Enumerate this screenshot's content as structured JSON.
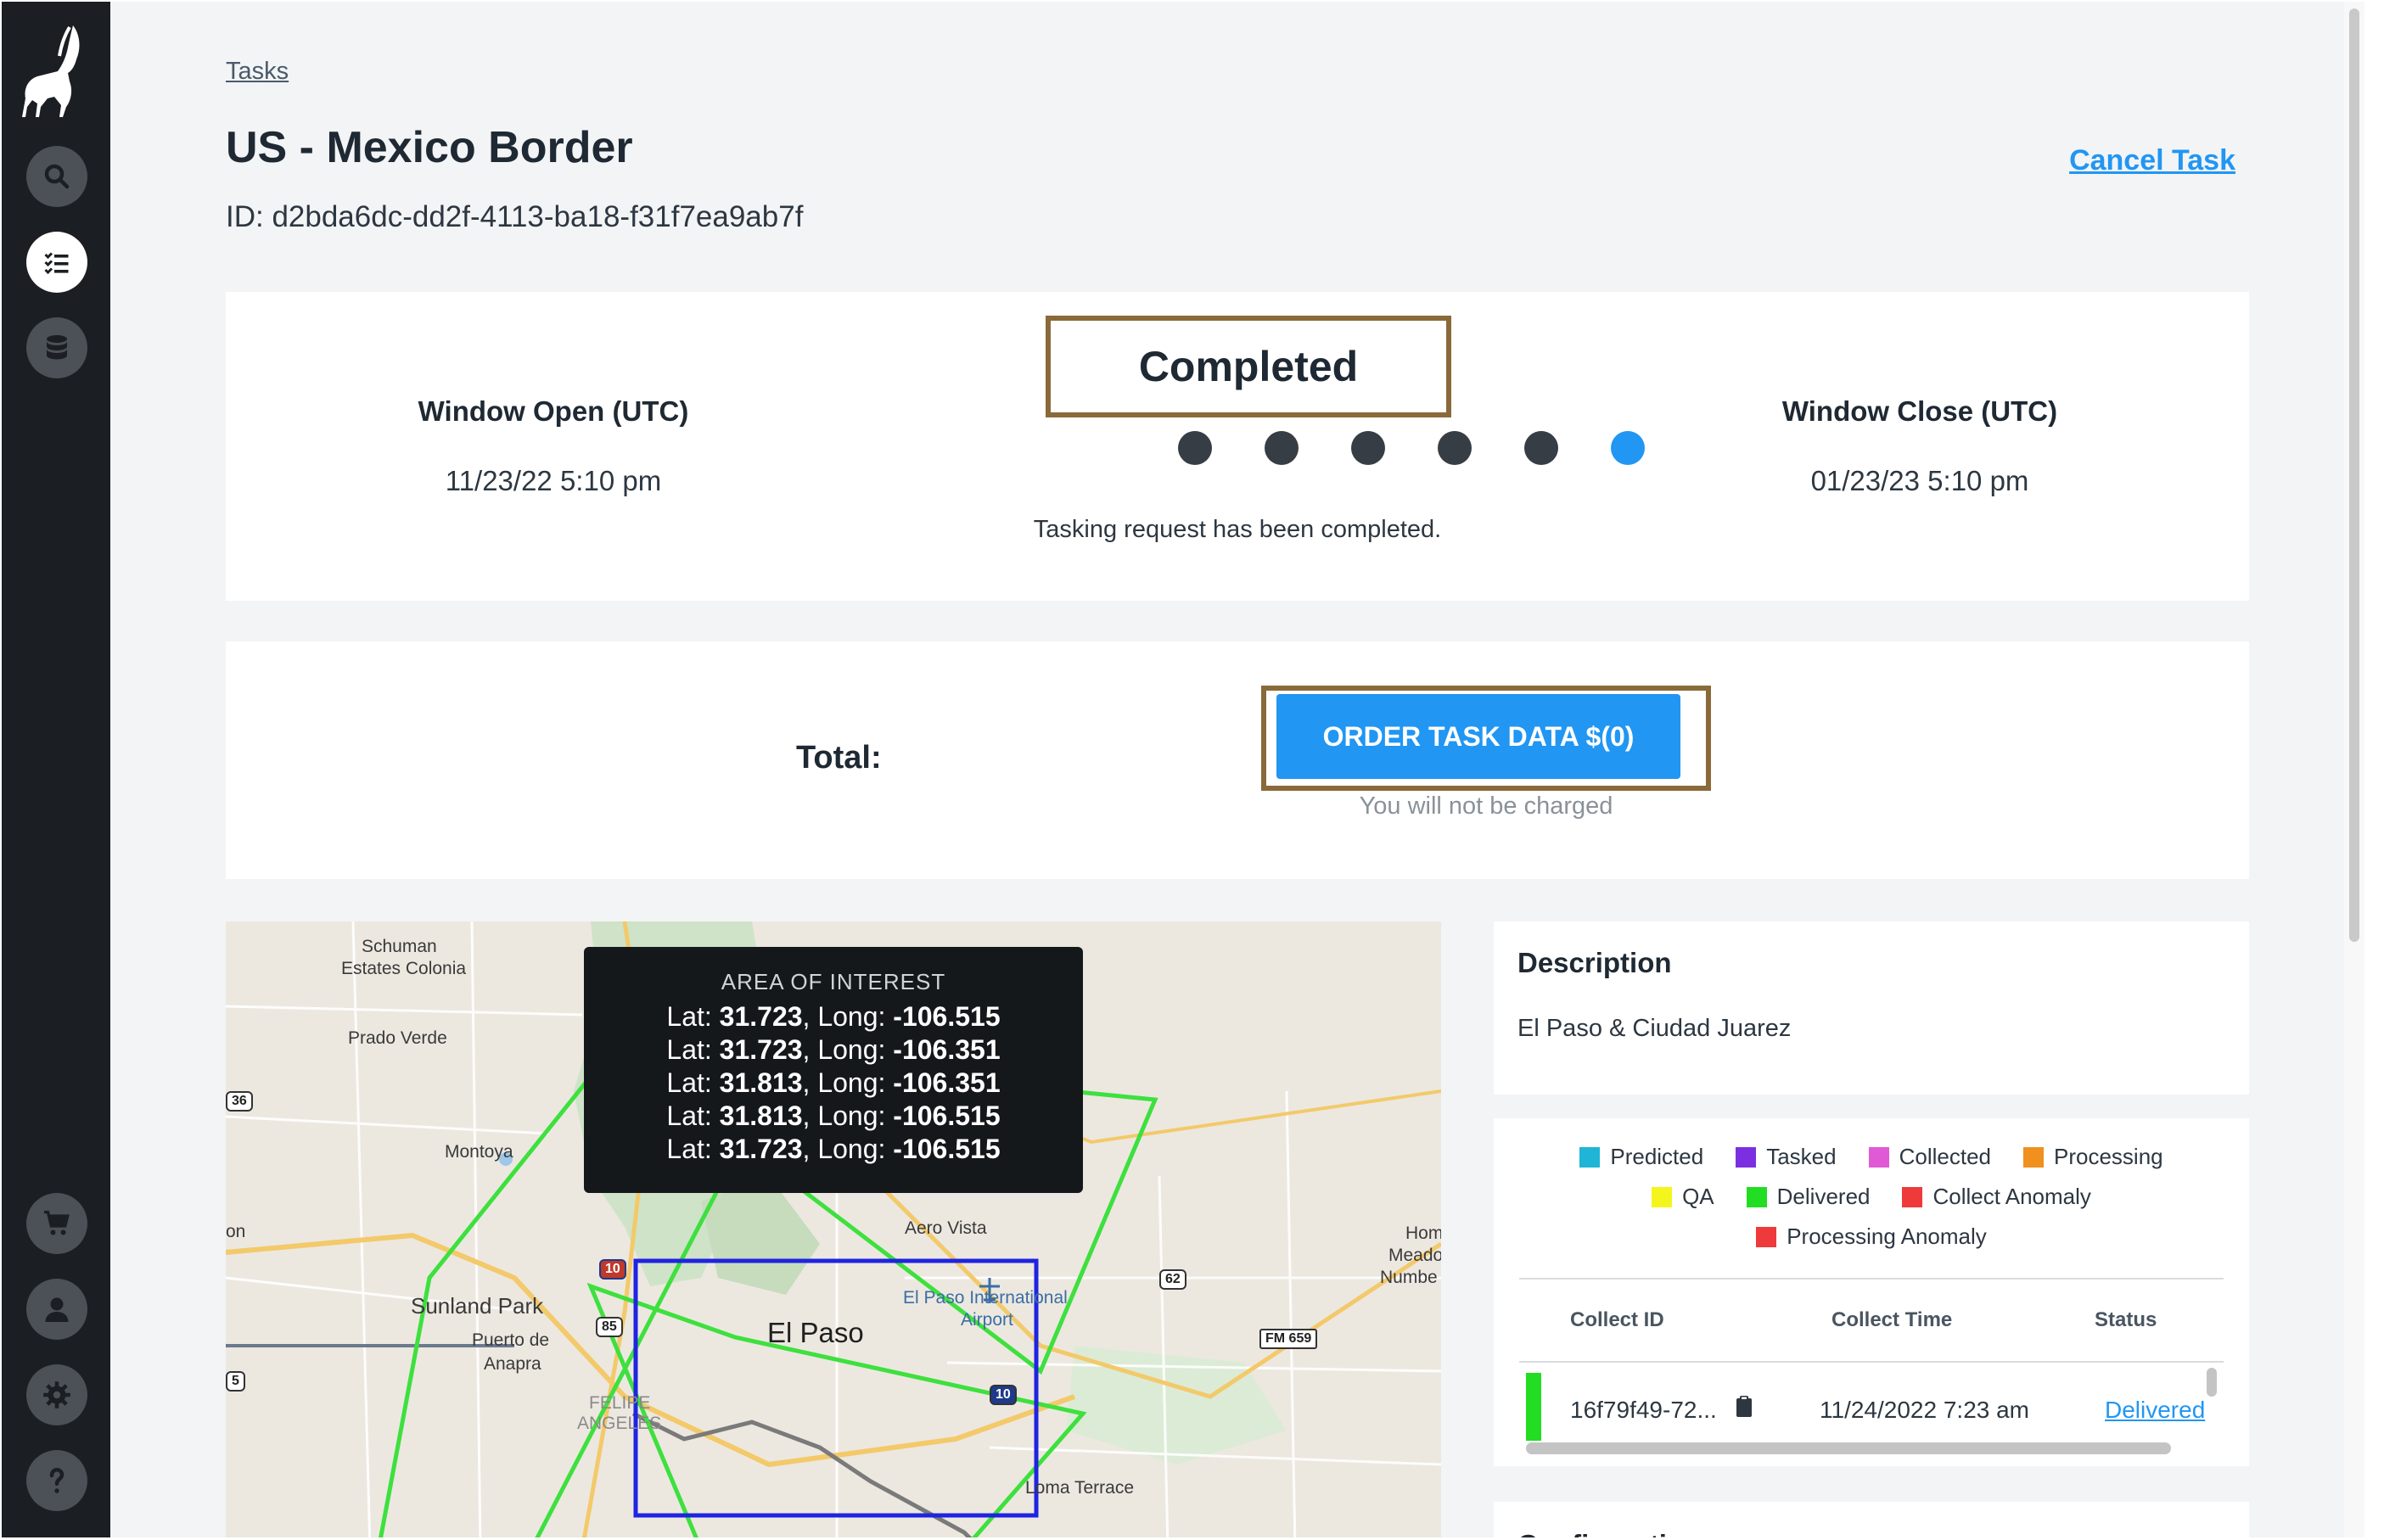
{
  "breadcrumb": "Tasks",
  "task": {
    "title": "US - Mexico Border",
    "id_text": "ID: d2bda6dc-dd2f-4113-ba18-f31f7ea9ab7f",
    "cancel_label": "Cancel Task"
  },
  "status": {
    "label": "Completed",
    "message": "Tasking request has been completed.",
    "step_count": 6,
    "current_step": 6,
    "window_open_label": "Window Open (UTC)",
    "window_open_value": "11/23/22 5:10 pm",
    "window_close_label": "Window Close (UTC)",
    "window_close_value": "01/23/23 5:10 pm"
  },
  "order": {
    "total_label": "Total:",
    "button_label": "ORDER TASK DATA $(0)",
    "note": "You will not be charged"
  },
  "map": {
    "tooltip_title": "AREA OF INTEREST",
    "coords": [
      {
        "lat_label": "Lat: ",
        "lat": "31.723",
        "long_label": ", Long: ",
        "long": "-106.515"
      },
      {
        "lat_label": "Lat: ",
        "lat": "31.723",
        "long_label": ", Long: ",
        "long": "-106.351"
      },
      {
        "lat_label": "Lat: ",
        "lat": "31.813",
        "long_label": ", Long: ",
        "long": "-106.351"
      },
      {
        "lat_label": "Lat: ",
        "lat": "31.813",
        "long_label": ", Long: ",
        "long": "-106.515"
      },
      {
        "lat_label": "Lat: ",
        "lat": "31.723",
        "long_label": ", Long: ",
        "long": "-106.515"
      }
    ],
    "labels": {
      "schuman": "Schuman",
      "estates": "Estates Colonia",
      "prado_verde": "Prado Verde",
      "montoya": "Montoya",
      "sunland_park": "Sunland Park",
      "puerto_de": "Puerto de",
      "anapra": "Anapra",
      "el_paso": "El Paso",
      "aero_vista": "Aero Vista",
      "airport_1": "El Paso International",
      "airport_2": "Airport",
      "felipe": "FELIPE",
      "angeles": "ANGELES",
      "loma_terrace": "Loma Terrace",
      "hom": "Hom",
      "meado": "Meado",
      "numbe": "Numbe",
      "on": "on",
      "fm659": "FM 659",
      "r36": "36",
      "r10": "10",
      "r85": "85",
      "r62": "62",
      "r10b": "10",
      "r375": "5"
    },
    "colors": {
      "aoi": "#1f24e0",
      "footprint": "#3ee03e"
    }
  },
  "description": {
    "title": "Description",
    "text": "El Paso & Ciudad Juarez"
  },
  "legend": [
    {
      "label": "Predicted",
      "color": "#1fb5d6"
    },
    {
      "label": "Tasked",
      "color": "#7b2fe0"
    },
    {
      "label": "Collected",
      "color": "#e05ad6"
    },
    {
      "label": "Processing",
      "color": "#f0901e"
    },
    {
      "label": "QA",
      "color": "#f5f51e"
    },
    {
      "label": "Delivered",
      "color": "#22dd22"
    },
    {
      "label": "Collect Anomaly",
      "color": "#ee3a3a"
    },
    {
      "label": "Processing Anomaly",
      "color": "#ee3a3a"
    }
  ],
  "collects": {
    "headers": {
      "id": "Collect ID",
      "time": "Collect Time",
      "status": "Status"
    },
    "rows": [
      {
        "id": "16f79f49-72...",
        "time": "11/24/2022 7:23 am",
        "status": "Delivered",
        "status_color": "#22dd22"
      }
    ]
  },
  "next_section_title": "Configuration"
}
